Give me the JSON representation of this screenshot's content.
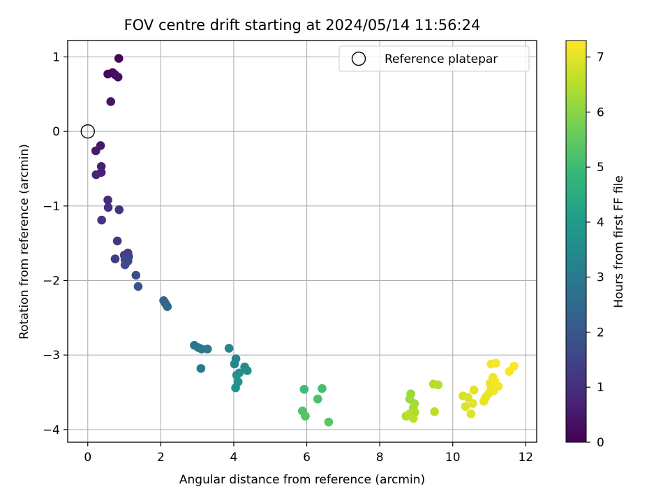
{
  "chart_data": {
    "type": "scatter",
    "title": "FOV centre drift starting at 2024/05/14 11:56:24",
    "xlabel": "Angular distance from reference (arcmin)",
    "ylabel": "Rotation from reference (arcmin)",
    "xlim": [
      -0.55,
      12.3
    ],
    "ylim": [
      -4.17,
      1.22
    ],
    "xticks": [
      0,
      2,
      4,
      6,
      8,
      10,
      12
    ],
    "xtick_labels": [
      "0",
      "2",
      "4",
      "6",
      "8",
      "10",
      "12"
    ],
    "yticks": [
      -4,
      -3,
      -2,
      -1,
      0,
      1
    ],
    "ytick_labels": [
      "−4",
      "−3",
      "−2",
      "−1",
      "0",
      "1"
    ],
    "grid": true,
    "legend": {
      "placement": "top-right",
      "entries": [
        {
          "label": "Reference platepar",
          "marker": "open-circle",
          "color": "#000000"
        }
      ]
    },
    "reference_point": {
      "x": 0,
      "y": 0
    },
    "colorbar": {
      "label": "Hours from first FF file",
      "range": [
        0,
        7.3
      ],
      "ticks": [
        0,
        1,
        2,
        3,
        4,
        5,
        6,
        7
      ],
      "tick_labels": [
        "0",
        "1",
        "2",
        "3",
        "4",
        "5",
        "6",
        "7"
      ],
      "colormap": "viridis",
      "colors": [
        "#440154",
        "#482878",
        "#3e4989",
        "#31688e",
        "#26828e",
        "#1f9e89",
        "#35b779",
        "#6ece58",
        "#b5de2b",
        "#fde725"
      ]
    },
    "points": [
      {
        "x": 0.85,
        "y": 0.98,
        "t": 0.1
      },
      {
        "x": 0.55,
        "y": 0.77,
        "t": 0.15
      },
      {
        "x": 0.68,
        "y": 0.79,
        "t": 0.2
      },
      {
        "x": 0.75,
        "y": 0.76,
        "t": 0.25
      },
      {
        "x": 0.83,
        "y": 0.73,
        "t": 0.3
      },
      {
        "x": 0.63,
        "y": 0.4,
        "t": 0.4
      },
      {
        "x": 0.35,
        "y": -0.19,
        "t": 0.5
      },
      {
        "x": 0.22,
        "y": -0.26,
        "t": 0.55
      },
      {
        "x": 0.37,
        "y": -0.47,
        "t": 0.6
      },
      {
        "x": 0.37,
        "y": -0.55,
        "t": 0.7
      },
      {
        "x": 0.23,
        "y": -0.58,
        "t": 0.75
      },
      {
        "x": 0.55,
        "y": -0.92,
        "t": 0.9
      },
      {
        "x": 0.56,
        "y": -1.02,
        "t": 1.0
      },
      {
        "x": 0.86,
        "y": -1.05,
        "t": 1.05
      },
      {
        "x": 0.38,
        "y": -1.19,
        "t": 1.1
      },
      {
        "x": 0.81,
        "y": -1.47,
        "t": 1.2
      },
      {
        "x": 0.75,
        "y": -1.71,
        "t": 1.3
      },
      {
        "x": 1.0,
        "y": -1.66,
        "t": 1.4
      },
      {
        "x": 1.1,
        "y": -1.63,
        "t": 1.45
      },
      {
        "x": 1.12,
        "y": -1.68,
        "t": 1.5
      },
      {
        "x": 1.02,
        "y": -1.72,
        "t": 1.55
      },
      {
        "x": 1.1,
        "y": -1.74,
        "t": 1.6
      },
      {
        "x": 1.02,
        "y": -1.79,
        "t": 1.65
      },
      {
        "x": 1.32,
        "y": -1.93,
        "t": 1.8
      },
      {
        "x": 1.38,
        "y": -2.08,
        "t": 1.9
      },
      {
        "x": 2.08,
        "y": -2.27,
        "t": 2.3
      },
      {
        "x": 2.13,
        "y": -2.31,
        "t": 2.35
      },
      {
        "x": 2.18,
        "y": -2.35,
        "t": 2.4
      },
      {
        "x": 2.92,
        "y": -2.87,
        "t": 2.8
      },
      {
        "x": 3.03,
        "y": -2.9,
        "t": 2.85
      },
      {
        "x": 3.12,
        "y": -2.92,
        "t": 2.9
      },
      {
        "x": 3.28,
        "y": -2.92,
        "t": 2.95
      },
      {
        "x": 3.1,
        "y": -3.18,
        "t": 3.0
      },
      {
        "x": 3.87,
        "y": -2.91,
        "t": 3.3
      },
      {
        "x": 4.06,
        "y": -3.05,
        "t": 3.4
      },
      {
        "x": 4.02,
        "y": -3.12,
        "t": 3.45
      },
      {
        "x": 4.3,
        "y": -3.16,
        "t": 3.5
      },
      {
        "x": 4.37,
        "y": -3.21,
        "t": 3.55
      },
      {
        "x": 4.15,
        "y": -3.24,
        "t": 3.6
      },
      {
        "x": 4.08,
        "y": -3.27,
        "t": 3.65
      },
      {
        "x": 4.12,
        "y": -3.36,
        "t": 3.7
      },
      {
        "x": 4.05,
        "y": -3.44,
        "t": 3.75
      },
      {
        "x": 5.93,
        "y": -3.46,
        "t": 5.0
      },
      {
        "x": 6.42,
        "y": -3.45,
        "t": 5.1
      },
      {
        "x": 6.3,
        "y": -3.59,
        "t": 5.2
      },
      {
        "x": 5.88,
        "y": -3.75,
        "t": 5.25
      },
      {
        "x": 5.96,
        "y": -3.82,
        "t": 5.3
      },
      {
        "x": 6.6,
        "y": -3.9,
        "t": 5.35
      },
      {
        "x": 8.85,
        "y": -3.52,
        "t": 6.2
      },
      {
        "x": 8.82,
        "y": -3.59,
        "t": 6.25
      },
      {
        "x": 8.95,
        "y": -3.65,
        "t": 6.3
      },
      {
        "x": 8.92,
        "y": -3.71,
        "t": 6.35
      },
      {
        "x": 8.96,
        "y": -3.77,
        "t": 6.4
      },
      {
        "x": 8.72,
        "y": -3.82,
        "t": 6.45
      },
      {
        "x": 8.82,
        "y": -3.79,
        "t": 6.5
      },
      {
        "x": 8.92,
        "y": -3.85,
        "t": 6.55
      },
      {
        "x": 9.47,
        "y": -3.39,
        "t": 6.45
      },
      {
        "x": 9.6,
        "y": -3.4,
        "t": 6.5
      },
      {
        "x": 9.5,
        "y": -3.76,
        "t": 6.55
      },
      {
        "x": 10.28,
        "y": -3.55,
        "t": 6.85
      },
      {
        "x": 10.42,
        "y": -3.57,
        "t": 6.9
      },
      {
        "x": 10.35,
        "y": -3.69,
        "t": 6.9
      },
      {
        "x": 10.5,
        "y": -3.79,
        "t": 6.95
      },
      {
        "x": 10.58,
        "y": -3.47,
        "t": 7.0
      },
      {
        "x": 10.55,
        "y": -3.65,
        "t": 7.0
      },
      {
        "x": 10.85,
        "y": -3.62,
        "t": 7.05
      },
      {
        "x": 10.9,
        "y": -3.57,
        "t": 7.05
      },
      {
        "x": 10.98,
        "y": -3.52,
        "t": 7.1
      },
      {
        "x": 11.05,
        "y": -3.46,
        "t": 7.1
      },
      {
        "x": 11.12,
        "y": -3.48,
        "t": 7.12
      },
      {
        "x": 11.02,
        "y": -3.38,
        "t": 7.14
      },
      {
        "x": 11.1,
        "y": -3.3,
        "t": 7.16
      },
      {
        "x": 11.15,
        "y": -3.35,
        "t": 7.18
      },
      {
        "x": 11.25,
        "y": -3.42,
        "t": 7.2
      },
      {
        "x": 11.05,
        "y": -3.12,
        "t": 7.2
      },
      {
        "x": 11.18,
        "y": -3.11,
        "t": 7.22
      },
      {
        "x": 11.55,
        "y": -3.22,
        "t": 7.25
      },
      {
        "x": 11.68,
        "y": -3.15,
        "t": 7.28
      }
    ]
  }
}
